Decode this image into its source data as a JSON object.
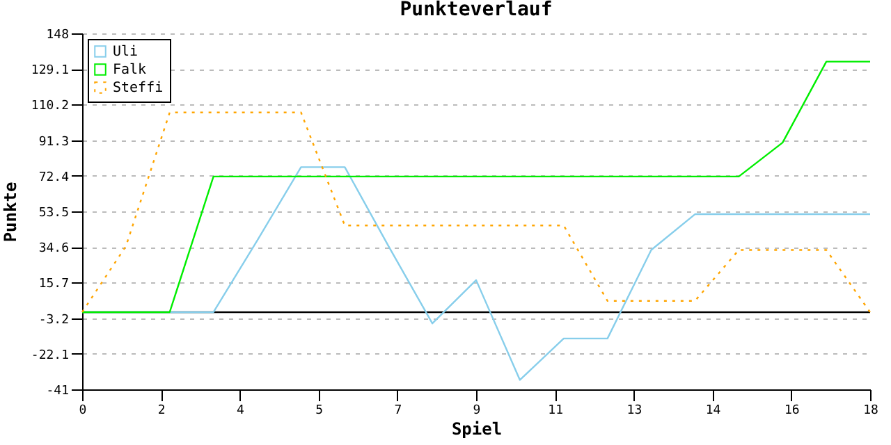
{
  "chart_data": {
    "type": "line",
    "title": "Punkteverlauf",
    "xlabel": "Spiel",
    "ylabel": "Punkte",
    "x": [
      0,
      1,
      2,
      3,
      4,
      5,
      6,
      7,
      8,
      9,
      10,
      11,
      12,
      13,
      14,
      15,
      16,
      17,
      18
    ],
    "series": [
      {
        "name": "Uli",
        "color": "#87ceeb",
        "line_style": "solid",
        "values": [
          0,
          0,
          0,
          0,
          38,
          77,
          77,
          35,
          -6,
          17,
          -36,
          -14,
          -14,
          33,
          52,
          52,
          52,
          52,
          52
        ]
      },
      {
        "name": "Falk",
        "color": "#00ee00",
        "line_style": "solid",
        "values": [
          0,
          0,
          0,
          72,
          72,
          72,
          72,
          72,
          72,
          72,
          72,
          72,
          72,
          72,
          72,
          72,
          90,
          133,
          133
        ]
      },
      {
        "name": "Steffi",
        "color": "#ffa500",
        "line_style": "dotted",
        "values": [
          0,
          35,
          106,
          106,
          106,
          106,
          46,
          46,
          46,
          46,
          46,
          46,
          6,
          6,
          6,
          33,
          33,
          33,
          0
        ]
      }
    ],
    "xlim": [
      0,
      18
    ],
    "xticks": [
      0,
      {
        "value": 1.8,
        "label": "2"
      },
      {
        "value": 3.6,
        "label": "4"
      },
      {
        "value": 5.4,
        "label": "5"
      },
      {
        "value": 7.2,
        "label": "7"
      },
      9,
      {
        "value": 10.8,
        "label": "11"
      },
      {
        "value": 12.6,
        "label": "13"
      },
      {
        "value": 14.4,
        "label": "14"
      },
      {
        "value": 16.2,
        "label": "16"
      },
      18
    ],
    "ylim": [
      -41,
      148
    ],
    "yticks": [
      -41,
      {
        "value": -22.1,
        "label": "-22.1"
      },
      {
        "value": -3.2,
        "label": "-3.2"
      },
      {
        "value": 15.7,
        "label": "15.7"
      },
      {
        "value": 34.6,
        "label": "34.6"
      },
      {
        "value": 53.5,
        "label": "53.5"
      },
      {
        "value": 72.4,
        "label": "72.4"
      },
      {
        "value": 91.3,
        "label": "91.3"
      },
      {
        "value": 110.2,
        "label": "110.2"
      },
      {
        "value": 129.1,
        "label": "129.1"
      },
      148
    ],
    "ref_lines": [
      {
        "axis": "y",
        "value": 0,
        "color": "#000000",
        "line_style": "solid"
      }
    ],
    "grid": "y",
    "legend": "top left",
    "marker": "none"
  }
}
